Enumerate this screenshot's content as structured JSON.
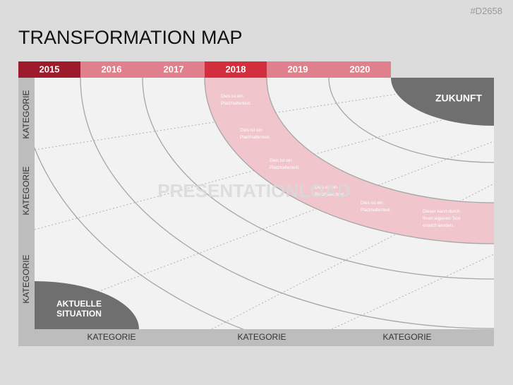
{
  "slide_id": "#D2658",
  "title": "TRANSFORMATION MAP",
  "years": [
    "2015",
    "2016",
    "2017",
    "2018",
    "2019",
    "2020"
  ],
  "future": "ZUKUNFT",
  "current": [
    "AKTUELLE",
    "SITUATION"
  ],
  "placeholders": [
    [
      "Dies ist ein",
      "Platzhaltertext."
    ],
    [
      "Dies ist ein",
      "Platzhaltertext."
    ],
    [
      "Dies ist ein",
      "Platzhaltertext."
    ],
    [
      "Dies ist ein",
      "Platzhaltertext."
    ],
    [
      "Dies ist ein",
      "Platzhaltertext."
    ],
    [
      "Dieser kann durch",
      "Ihren eigenen Text",
      "ersetzt werden."
    ]
  ],
  "watermark": "PRESENTATIONLOAD",
  "row_labels": [
    "KATEGORIE",
    "KATEGORIE",
    "KATEGORIE"
  ],
  "column_labels": [
    "KATEGORIE",
    "KATEGORIE",
    "KATEGORIE"
  ]
}
